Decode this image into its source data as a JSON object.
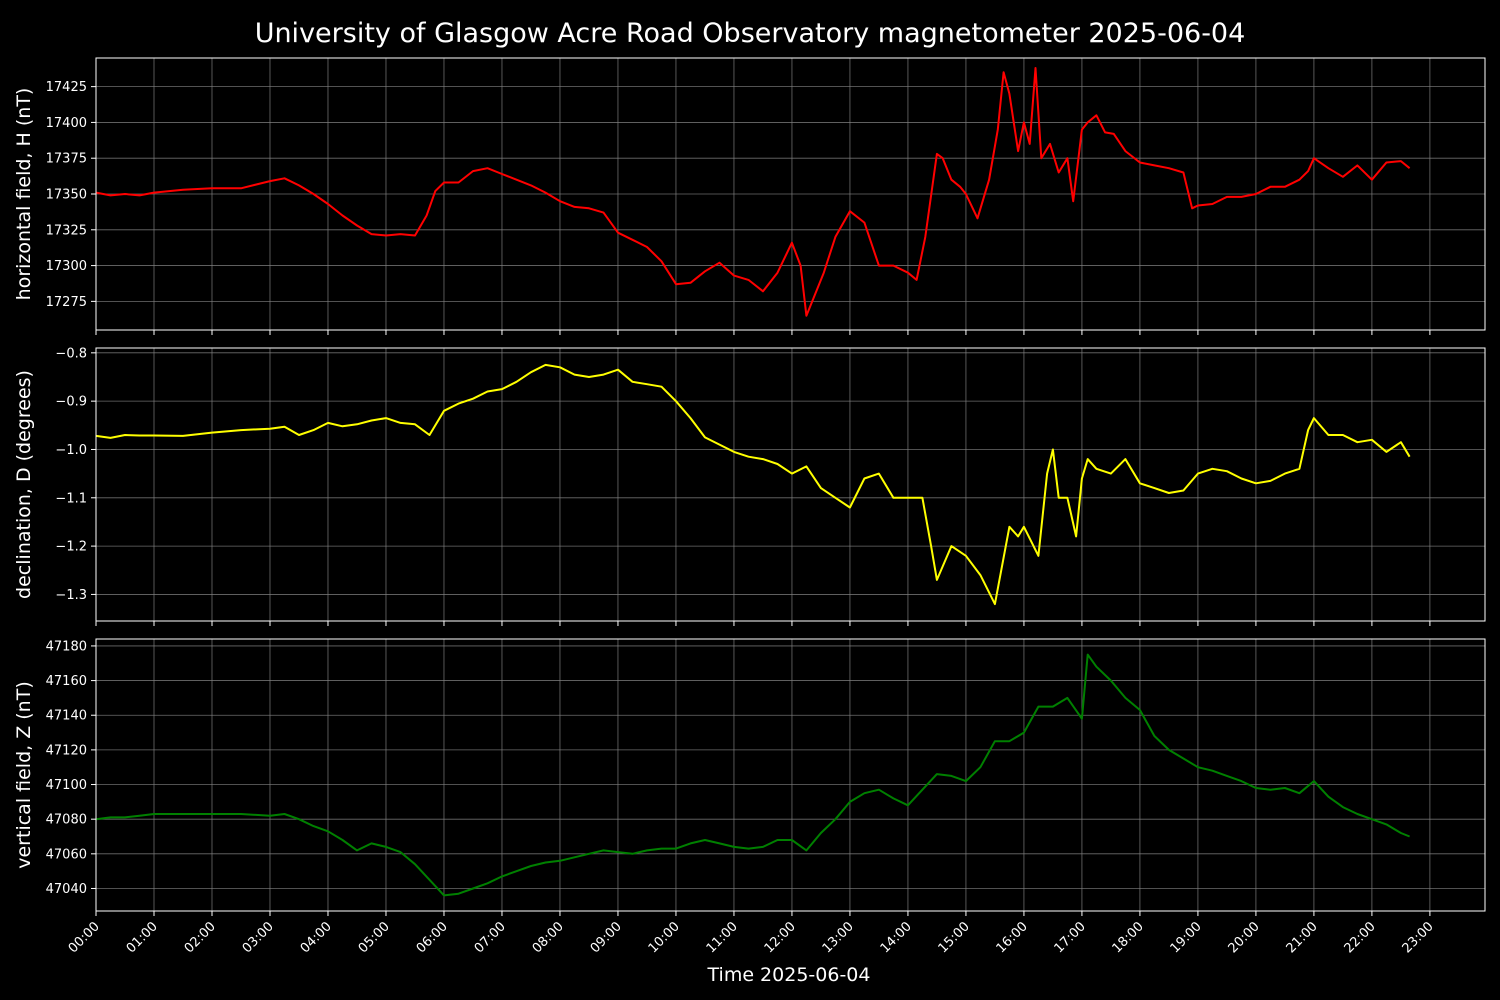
{
  "chart_data": {
    "type": "line",
    "title": "University of Glasgow Acre Road Observatory magnetometer 2025-06-04",
    "xlabel": "Time 2025-06-04",
    "x_ticks": [
      "00:00",
      "01:00",
      "02:00",
      "03:00",
      "04:00",
      "05:00",
      "06:00",
      "07:00",
      "08:00",
      "09:00",
      "10:00",
      "11:00",
      "12:00",
      "13:00",
      "14:00",
      "15:00",
      "16:00",
      "17:00",
      "18:00",
      "19:00",
      "20:00",
      "21:00",
      "22:00",
      "23:00"
    ],
    "xlim_hours": [
      0,
      23.95
    ],
    "grid": true,
    "panels": [
      {
        "name": "H",
        "ylabel": "horizontal field, H (nT)",
        "color": "#ff0000",
        "ylim": [
          17255,
          17445
        ],
        "yticks": [
          17275,
          17300,
          17325,
          17350,
          17375,
          17400,
          17425
        ],
        "ytick_labels": [
          "17275",
          "17300",
          "17325",
          "17350",
          "17375",
          "17400",
          "17425"
        ],
        "x": [
          0.0,
          0.25,
          0.5,
          0.75,
          1.0,
          1.5,
          2.0,
          2.5,
          3.0,
          3.25,
          3.5,
          3.75,
          4.0,
          4.25,
          4.5,
          4.75,
          5.0,
          5.25,
          5.5,
          5.7,
          5.85,
          6.0,
          6.25,
          6.5,
          6.75,
          7.0,
          7.25,
          7.5,
          7.75,
          8.0,
          8.25,
          8.5,
          8.75,
          9.0,
          9.25,
          9.5,
          9.75,
          10.0,
          10.25,
          10.5,
          10.75,
          11.0,
          11.25,
          11.5,
          11.75,
          12.0,
          12.15,
          12.25,
          12.4,
          12.55,
          12.75,
          13.0,
          13.25,
          13.5,
          13.75,
          14.0,
          14.15,
          14.3,
          14.5,
          14.6,
          14.75,
          14.9,
          15.0,
          15.2,
          15.4,
          15.55,
          15.65,
          15.75,
          15.9,
          16.0,
          16.1,
          16.2,
          16.3,
          16.45,
          16.6,
          16.75,
          16.85,
          17.0,
          17.1,
          17.25,
          17.4,
          17.55,
          17.75,
          18.0,
          18.25,
          18.5,
          18.75,
          18.9,
          19.0,
          19.25,
          19.5,
          19.75,
          20.0,
          20.25,
          20.5,
          20.75,
          20.9,
          21.0,
          21.25,
          21.5,
          21.75,
          22.0,
          22.25,
          22.5,
          22.65
        ],
        "y": [
          17351,
          17349,
          17350,
          17349,
          17351,
          17353,
          17354,
          17354,
          17359,
          17361,
          17356,
          17350,
          17343,
          17335,
          17328,
          17322,
          17321,
          17322,
          17321,
          17335,
          17352,
          17358,
          17358,
          17366,
          17368,
          17364,
          17360,
          17356,
          17351,
          17345,
          17341,
          17340,
          17337,
          17323,
          17318,
          17313,
          17303,
          17287,
          17288,
          17296,
          17302,
          17293,
          17290,
          17282,
          17295,
          17316,
          17300,
          17265,
          17280,
          17295,
          17320,
          17338,
          17330,
          17300,
          17300,
          17295,
          17290,
          17320,
          17378,
          17375,
          17360,
          17355,
          17350,
          17333,
          17360,
          17395,
          17435,
          17420,
          17380,
          17400,
          17385,
          17438,
          17375,
          17385,
          17365,
          17375,
          17345,
          17395,
          17400,
          17405,
          17393,
          17392,
          17380,
          17372,
          17370,
          17368,
          17365,
          17340,
          17342,
          17343,
          17348,
          17348,
          17350,
          17355,
          17355,
          17360,
          17366,
          17375,
          17368,
          17362,
          17370,
          17360,
          17372,
          17373,
          17368
        ]
      },
      {
        "name": "D",
        "ylabel": "declination, D (degrees)",
        "color": "#ffff00",
        "ylim": [
          -1.355,
          -0.79
        ],
        "yticks": [
          -1.3,
          -1.2,
          -1.1,
          -1.0,
          -0.9,
          -0.8
        ],
        "ytick_labels": [
          "−1.3",
          "−1.2",
          "−1.1",
          "−1.0",
          "−0.9",
          "−0.8"
        ],
        "x": [
          0.0,
          0.25,
          0.5,
          0.75,
          1.0,
          1.5,
          2.0,
          2.5,
          3.0,
          3.25,
          3.5,
          3.75,
          4.0,
          4.25,
          4.5,
          4.75,
          5.0,
          5.25,
          5.5,
          5.75,
          6.0,
          6.25,
          6.5,
          6.75,
          7.0,
          7.25,
          7.5,
          7.75,
          8.0,
          8.25,
          8.5,
          8.75,
          9.0,
          9.25,
          9.5,
          9.75,
          10.0,
          10.25,
          10.5,
          10.75,
          11.0,
          11.25,
          11.5,
          11.75,
          12.0,
          12.25,
          12.5,
          12.75,
          13.0,
          13.25,
          13.5,
          13.75,
          14.0,
          14.25,
          14.4,
          14.5,
          14.75,
          15.0,
          15.25,
          15.5,
          15.75,
          15.9,
          16.0,
          16.25,
          16.4,
          16.5,
          16.6,
          16.75,
          16.9,
          17.0,
          17.1,
          17.25,
          17.5,
          17.75,
          18.0,
          18.25,
          18.5,
          18.75,
          19.0,
          19.25,
          19.5,
          19.75,
          20.0,
          20.25,
          20.5,
          20.75,
          20.9,
          21.0,
          21.25,
          21.5,
          21.75,
          22.0,
          22.25,
          22.5,
          22.65
        ],
        "y": [
          -0.972,
          -0.976,
          -0.97,
          -0.971,
          -0.971,
          -0.972,
          -0.965,
          -0.96,
          -0.957,
          -0.953,
          -0.97,
          -0.96,
          -0.945,
          -0.952,
          -0.948,
          -0.94,
          -0.935,
          -0.945,
          -0.948,
          -0.97,
          -0.92,
          -0.905,
          -0.895,
          -0.88,
          -0.875,
          -0.86,
          -0.84,
          -0.825,
          -0.83,
          -0.845,
          -0.85,
          -0.845,
          -0.835,
          -0.86,
          -0.865,
          -0.87,
          -0.9,
          -0.935,
          -0.975,
          -0.99,
          -1.005,
          -1.015,
          -1.02,
          -1.03,
          -1.05,
          -1.035,
          -1.08,
          -1.1,
          -1.12,
          -1.06,
          -1.05,
          -1.1,
          -1.1,
          -1.1,
          -1.2,
          -1.27,
          -1.2,
          -1.22,
          -1.26,
          -1.32,
          -1.16,
          -1.18,
          -1.16,
          -1.22,
          -1.05,
          -1.0,
          -1.1,
          -1.1,
          -1.18,
          -1.06,
          -1.02,
          -1.04,
          -1.05,
          -1.02,
          -1.07,
          -1.08,
          -1.09,
          -1.085,
          -1.05,
          -1.04,
          -1.045,
          -1.06,
          -1.07,
          -1.065,
          -1.05,
          -1.04,
          -0.96,
          -0.935,
          -0.97,
          -0.97,
          -0.985,
          -0.98,
          -1.005,
          -0.985,
          -1.015
        ]
      },
      {
        "name": "Z",
        "ylabel": "vertical field, Z (nT)",
        "color": "#008000",
        "ylim": [
          47027,
          47184
        ],
        "yticks": [
          47040,
          47060,
          47080,
          47100,
          47120,
          47140,
          47160,
          47180
        ],
        "ytick_labels": [
          "47040",
          "47060",
          "47080",
          "47100",
          "47120",
          "47140",
          "47160",
          "47180"
        ],
        "x": [
          0.0,
          0.25,
          0.5,
          0.75,
          1.0,
          1.5,
          2.0,
          2.5,
          3.0,
          3.25,
          3.5,
          3.75,
          4.0,
          4.25,
          4.5,
          4.75,
          5.0,
          5.25,
          5.5,
          5.75,
          6.0,
          6.25,
          6.5,
          6.75,
          7.0,
          7.25,
          7.5,
          7.75,
          8.0,
          8.25,
          8.5,
          8.75,
          9.0,
          9.25,
          9.5,
          9.75,
          10.0,
          10.25,
          10.5,
          10.75,
          11.0,
          11.25,
          11.5,
          11.75,
          12.0,
          12.25,
          12.5,
          12.75,
          13.0,
          13.25,
          13.5,
          13.75,
          14.0,
          14.25,
          14.5,
          14.75,
          15.0,
          15.25,
          15.5,
          15.75,
          16.0,
          16.25,
          16.5,
          16.75,
          17.0,
          17.1,
          17.25,
          17.5,
          17.75,
          18.0,
          18.25,
          18.5,
          18.75,
          19.0,
          19.25,
          19.5,
          19.75,
          20.0,
          20.25,
          20.5,
          20.75,
          21.0,
          21.25,
          21.5,
          21.75,
          22.0,
          22.25,
          22.5,
          22.65
        ],
        "y": [
          47080,
          47081,
          47081,
          47082,
          47083,
          47083,
          47083,
          47083,
          47082,
          47083,
          47080,
          47076,
          47073,
          47068,
          47062,
          47066,
          47064,
          47061,
          47054,
          47045,
          47036,
          47037,
          47040,
          47043,
          47047,
          47050,
          47053,
          47055,
          47056,
          47058,
          47060,
          47062,
          47061,
          47060,
          47062,
          47063,
          47063,
          47066,
          47068,
          47066,
          47064,
          47063,
          47064,
          47068,
          47068,
          47062,
          47072,
          47080,
          47090,
          47095,
          47097,
          47092,
          47088,
          47097,
          47106,
          47105,
          47102,
          47110,
          47125,
          47125,
          47130,
          47145,
          47145,
          47150,
          47138,
          47175,
          47168,
          47160,
          47150,
          47143,
          47128,
          47120,
          47115,
          47110,
          47108,
          47105,
          47102,
          47098,
          47097,
          47098,
          47095,
          47102,
          47093,
          47087,
          47083,
          47080,
          47077,
          47072,
          47070
        ]
      }
    ]
  }
}
